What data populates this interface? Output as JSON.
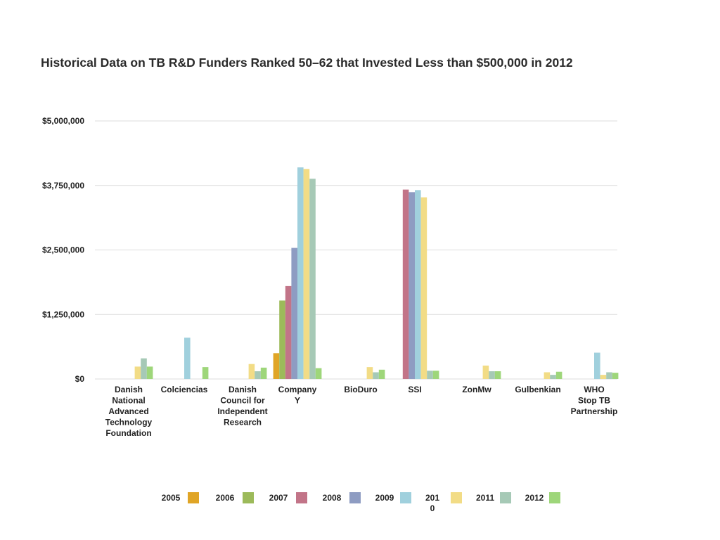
{
  "chart_data": {
    "type": "bar",
    "title": "Historical Data on TB R&D Funders Ranked 50–62 that Invested Less than $500,000 in 2012",
    "ylim": [
      0,
      5000000
    ],
    "y_ticks": [
      0,
      1250000,
      2500000,
      3750000,
      5000000
    ],
    "y_tick_labels": [
      "$0",
      "$1,250,000",
      "$2,500,000",
      "$3,750,000",
      "$5,000,000"
    ],
    "grid": true,
    "legend_position": "bottom",
    "categories": [
      "Danish National Advanced Technology Foundation",
      "Colciencias",
      "Danish Council for Independent Research",
      "Company Y",
      "BioDuro",
      "SSI",
      "ZonMw",
      "Gulbenkian",
      "WHO Stop TB Partnership"
    ],
    "category_label_lines": [
      [
        "Danish",
        "National",
        "Advanced",
        "Technology",
        "Foundation"
      ],
      [
        "Colciencias"
      ],
      [
        "Danish",
        "Council for",
        "Independent",
        "Research"
      ],
      [
        "Company",
        "Y"
      ],
      [
        "BioDuro"
      ],
      [
        "SSI"
      ],
      [
        "ZonMw"
      ],
      [
        "Gulbenkian"
      ],
      [
        "WHO",
        "Stop TB",
        "Partnership"
      ]
    ],
    "series": [
      {
        "name": "2005",
        "color": "#e0a526",
        "values": [
          0,
          0,
          0,
          500000,
          0,
          0,
          0,
          0,
          0
        ]
      },
      {
        "name": "2006",
        "color": "#9cba5a",
        "values": [
          0,
          0,
          0,
          1520000,
          0,
          0,
          0,
          0,
          0
        ]
      },
      {
        "name": "2007",
        "color": "#c27488",
        "values": [
          0,
          0,
          0,
          1800000,
          0,
          3670000,
          0,
          0,
          0
        ]
      },
      {
        "name": "2008",
        "color": "#8e9cc2",
        "values": [
          0,
          0,
          0,
          2540000,
          0,
          3620000,
          0,
          0,
          0
        ]
      },
      {
        "name": "2009",
        "color": "#a0d0dd",
        "values": [
          0,
          800000,
          0,
          4100000,
          0,
          3660000,
          0,
          0,
          510000
        ]
      },
      {
        "name": "2010",
        "color": "#f2dc86",
        "values": [
          240000,
          0,
          290000,
          4070000,
          230000,
          3520000,
          260000,
          130000,
          80000
        ]
      },
      {
        "name": "2011",
        "color": "#a6c9b6",
        "values": [
          400000,
          0,
          150000,
          3880000,
          130000,
          160000,
          150000,
          80000,
          130000
        ]
      },
      {
        "name": "2012",
        "color": "#9ed67a",
        "values": [
          240000,
          230000,
          220000,
          210000,
          180000,
          160000,
          150000,
          140000,
          120000
        ]
      }
    ],
    "legend_label_lines": [
      [
        "2005"
      ],
      [
        "2006"
      ],
      [
        "2007"
      ],
      [
        "2008"
      ],
      [
        "2009"
      ],
      [
        "201",
        "0"
      ],
      [
        "2011"
      ],
      [
        "2012"
      ]
    ]
  }
}
